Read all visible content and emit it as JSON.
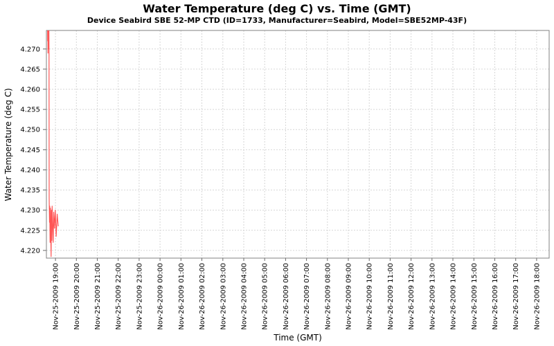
{
  "page": {
    "background": "#ffffff"
  },
  "chart_data": {
    "type": "line",
    "title": "Water Temperature (deg C) vs. Time (GMT)",
    "subtitle": "Device Seabird SBE 52-MP CTD (ID=1733, Manufacturer=Seabird, Model=SBE52MP-43F)",
    "xlabel": "Time (GMT)",
    "ylabel": "Water Temperature (deg C)",
    "ylim": [
      4.2181,
      4.2746
    ],
    "y_ticks": [
      4.22,
      4.225,
      4.23,
      4.235,
      4.24,
      4.245,
      4.25,
      4.255,
      4.26,
      4.265,
      4.27
    ],
    "y_tick_decimals": 3,
    "grid": {
      "show": true,
      "style": "dashed",
      "color": "#d6d6d6"
    },
    "legend": {
      "show": false
    },
    "x_axis": {
      "start_time": "Nov-25-2009 18:34",
      "end_time": "Nov-26-2009 18:36",
      "total_minutes": 1442,
      "first_tick_offset_minutes": 26,
      "tick_interval_minutes": 60,
      "tick_labels": [
        "Nov-25-2009 19:00",
        "Nov-25-2009 20:00",
        "Nov-25-2009 21:00",
        "Nov-25-2009 22:00",
        "Nov-25-2009 23:00",
        "Nov-26-2009 00:00",
        "Nov-26-2009 01:00",
        "Nov-26-2009 02:00",
        "Nov-26-2009 03:00",
        "Nov-26-2009 04:00",
        "Nov-26-2009 05:00",
        "Nov-26-2009 06:00",
        "Nov-26-2009 07:00",
        "Nov-26-2009 08:00",
        "Nov-26-2009 09:00",
        "Nov-26-2009 10:00",
        "Nov-26-2009 11:00",
        "Nov-26-2009 12:00",
        "Nov-26-2009 13:00",
        "Nov-26-2009 14:00",
        "Nov-26-2009 15:00",
        "Nov-26-2009 16:00",
        "Nov-26-2009 17:00",
        "Nov-26-2009 18:00"
      ]
    },
    "series": [
      {
        "name": "Water Temperature",
        "color": "#ff5555",
        "points_min_value": [
          [
            3.0,
            4.28
          ],
          [
            3.5,
            4.272
          ],
          [
            4.0,
            4.2795
          ],
          [
            4.5,
            4.269
          ],
          [
            5.0,
            4.279
          ],
          [
            5.5,
            4.27
          ],
          [
            6.0,
            4.28
          ],
          [
            6.5,
            4.274
          ],
          [
            7.0,
            4.279
          ],
          [
            7.5,
            4.2695
          ],
          [
            8.0,
            4.233
          ],
          [
            9.0,
            4.227
          ],
          [
            9.5,
            4.231
          ],
          [
            10.5,
            4.222
          ],
          [
            11.5,
            4.2305
          ],
          [
            12.5,
            4.2235
          ],
          [
            13.5,
            4.2185
          ],
          [
            14.5,
            4.23
          ],
          [
            15.5,
            4.2225
          ],
          [
            16.5,
            4.231
          ],
          [
            18.0,
            4.226
          ],
          [
            19.5,
            4.222
          ],
          [
            21.0,
            4.2295
          ],
          [
            23.0,
            4.2255
          ],
          [
            25.5,
            4.23
          ],
          [
            28.0,
            4.2235
          ],
          [
            31.0,
            4.229
          ],
          [
            34.0,
            4.226
          ]
        ]
      }
    ]
  },
  "colors": {
    "plot_border": "#808080",
    "tick_mark": "#666666",
    "grid_line": "#d6d6d6",
    "series_red": "#ff5555",
    "text": "#000000"
  }
}
